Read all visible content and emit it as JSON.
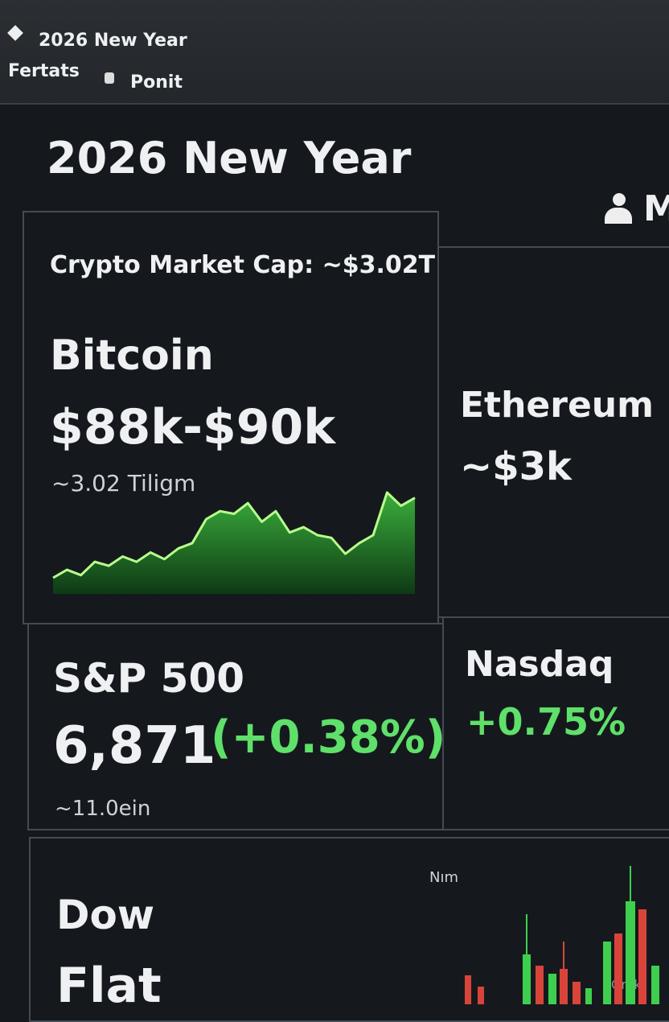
{
  "top_bar": {
    "title": "2026 New Year",
    "tabs": [
      "Fertats",
      "Ponit"
    ]
  },
  "header": {
    "title": "2026 New Year",
    "user": "M"
  },
  "cards": [
    {
      "subtitle": "Crypto Market Cap: ~$3.02T",
      "name": "Bitcoin",
      "price": "$88k-$90k",
      "note": "~3.02 Tiligm",
      "sparkline": [
        8,
        14,
        10,
        20,
        17,
        24,
        20,
        27,
        22,
        30,
        34,
        52,
        58,
        56,
        64,
        50,
        58,
        42,
        46,
        40,
        38,
        26,
        34,
        40,
        72,
        62,
        68
      ]
    },
    {
      "name": "Ethereum",
      "price": "~$3k"
    },
    {
      "name": "S&P 500",
      "price": "6,871",
      "change": "(+0.38%)",
      "note": "~11.0ein"
    },
    {
      "name": "Nasdaq",
      "change": "+0.75%"
    },
    {
      "name": "Dow",
      "price": "Flat",
      "chart_label": "Nım"
    }
  ],
  "watermark": "Grok"
}
